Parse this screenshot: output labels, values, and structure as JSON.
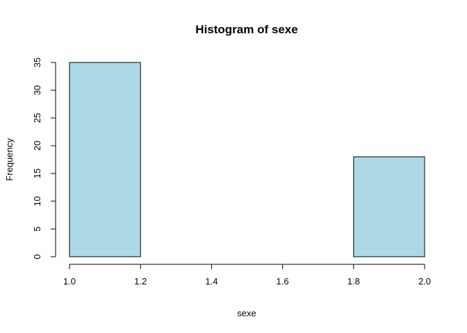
{
  "chart_data": {
    "type": "bar",
    "subtype": "histogram",
    "title": "Histogram of sexe",
    "xlabel": "sexe",
    "ylabel": "Frequency",
    "bins": [
      {
        "start": 1.0,
        "end": 1.2,
        "count": 35
      },
      {
        "start": 1.2,
        "end": 1.4,
        "count": 0
      },
      {
        "start": 1.4,
        "end": 1.6,
        "count": 0
      },
      {
        "start": 1.6,
        "end": 1.8,
        "count": 0
      },
      {
        "start": 1.8,
        "end": 2.0,
        "count": 18
      }
    ],
    "xlim": [
      1.0,
      2.0
    ],
    "ylim": [
      0,
      35
    ],
    "x_ticks": [
      "1.0",
      "1.2",
      "1.4",
      "1.6",
      "1.8",
      "2.0"
    ],
    "y_ticks": [
      "0",
      "5",
      "10",
      "15",
      "20",
      "25",
      "30",
      "35"
    ],
    "bar_color": "#add8e6",
    "grid": false,
    "legend": "none"
  }
}
